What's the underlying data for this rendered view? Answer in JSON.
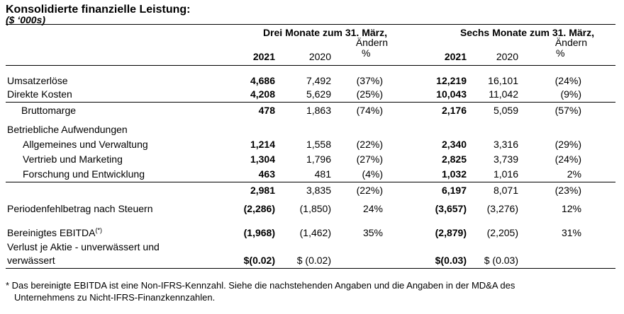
{
  "title": "Konsolidierte finanzielle Leistung:",
  "unit": "($ ‘000s)",
  "header": {
    "three_months": "Drei Monate zum 31. März,",
    "six_months": "Sechs Monate zum 31. März,",
    "change_line1": "Ändern",
    "change_line2": "%",
    "year_2021": "2021",
    "year_2020": "2020"
  },
  "rows": [
    {
      "label": "Umsatzerlöse",
      "q2021": "4,686",
      "q2020": "7,492",
      "qchg": "(37%)",
      "s2021": "12,219",
      "s2020": "16,101",
      "schg": "(24%)"
    },
    {
      "label": "Direkte Kosten",
      "q2021": "4,208",
      "q2020": "5,629",
      "qchg": "(25%)",
      "s2021": "10,043",
      "s2020": "11,042",
      "schg": "(9%)"
    },
    {
      "label": "Bruttomarge",
      "q2021": "478",
      "q2020": "1,863",
      "qchg": "(74%)",
      "s2021": "2,176",
      "s2020": "5,059",
      "schg": "(57%)"
    },
    {
      "label": "Betriebliche Aufwendungen"
    },
    {
      "label": "Allgemeines und Verwaltung",
      "q2021": "1,214",
      "q2020": "1,558",
      "qchg": "(22%)",
      "s2021": "2,340",
      "s2020": "3,316",
      "schg": "(29%)"
    },
    {
      "label": "Vertrieb und Marketing",
      "q2021": "1,304",
      "q2020": "1,796",
      "qchg": "(27%)",
      "s2021": "2,825",
      "s2020": "3,739",
      "schg": "(24%)"
    },
    {
      "label": "Forschung und Entwicklung",
      "q2021": "463",
      "q2020": "481",
      "qchg": "(4%)",
      "s2021": "1,032",
      "s2020": "1,016",
      "schg": "2%"
    },
    {
      "label": "",
      "q2021": "2,981",
      "q2020": "3,835",
      "qchg": "(22%)",
      "s2021": "6,197",
      "s2020": "8,071",
      "schg": "(23%)"
    },
    {
      "label": "Periodenfehlbetrag nach Steuern",
      "q2021": "(2,286)",
      "q2020": "(1,850)",
      "qchg": "24%",
      "s2021": "(3,657)",
      "s2020": "(3,276)",
      "schg": "12%"
    },
    {
      "label": "Bereinigtes EBITDA",
      "label_sup": "(*)",
      "q2021": "(1,968)",
      "q2020": "(1,462)",
      "qchg": "35%",
      "s2021": "(2,879)",
      "s2020": "(2,205)",
      "schg": "31%"
    },
    {
      "label": "Verlust je Aktie - unverwässert und",
      "label2": "verwässert",
      "q2021": "$(0.02)",
      "q2020": "$ (0.02)",
      "s2021": "$(0.03)",
      "s2020": "$ (0.03)"
    }
  ],
  "footnote": {
    "line1": "* Das bereinigte EBITDA ist eine Non-IFRS-Kennzahl. Siehe die nachstehenden Angaben und die Angaben in der MD&A des",
    "line2": "Unternehmens zu Nicht-IFRS-Finanzkennzahlen."
  }
}
